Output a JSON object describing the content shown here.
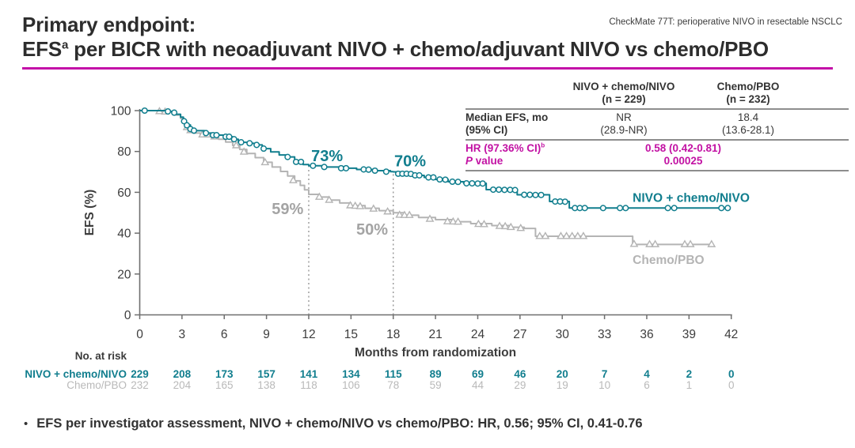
{
  "slide": {
    "kicker": "CheckMate 77T: perioperative NIVO in resectable NSCLC",
    "title_line1": "Primary endpoint:",
    "title_line2_pre": "EFS",
    "title_line2_sup": "a",
    "title_line2_rest": " per BICR with neoadjuvant NIVO + chemo/adjuvant NIVO vs chemo/PBO",
    "bullet_glyph": "•",
    "footnote_bullet": "EFS per investigator assessment, NIVO + chemo/NIVO vs chemo/PBO: HR, 0.56; 95% CI, 0.41-0.76"
  },
  "colors": {
    "accent_magenta": "#c410a8",
    "teal": "#117e8e",
    "gray_curve": "#b4b4b4",
    "gray_annotation": "#a4a4a4",
    "axis": "#6f6f6f",
    "text_dark": "#3d3d3d"
  },
  "stats_table": {
    "col1_header_line1": "NIVO + chemo/NIVO",
    "col1_header_line2": "(n = 229)",
    "col2_header_line1": "Chemo/PBO",
    "col2_header_line2": "(n = 232)",
    "median_label_line1": "Median EFS, mo",
    "median_label_line2": "(95% CI)",
    "median_col1_line1": "NR",
    "median_col1_line2": "(28.9-NR)",
    "median_col2_line1": "18.4",
    "median_col2_line2": "(13.6-28.1)",
    "hr_label_pre": "HR (97.36% CI)",
    "hr_label_sup": "b",
    "hr_value": "0.58 (0.42-0.81)",
    "p_label_italic": "P",
    "p_label_rest": " value",
    "p_value": "0.00025"
  },
  "chart_data": {
    "type": "line",
    "subtype": "kaplan-meier-step",
    "title": "",
    "xlabel": "Months from randomization",
    "ylabel": "EFS (%)",
    "xlim": [
      0,
      42
    ],
    "ylim": [
      0,
      100
    ],
    "xticks": [
      0,
      3,
      6,
      9,
      12,
      15,
      18,
      21,
      24,
      27,
      30,
      33,
      36,
      39,
      42
    ],
    "yticks": [
      0,
      20,
      40,
      60,
      80,
      100
    ],
    "grid": false,
    "legend_position": "inline-labels",
    "series": [
      {
        "name": "NIVO + chemo/NIVO",
        "color": "#117e8e",
        "marker": "circle",
        "label_month": 35.0,
        "label_pct": 55.3,
        "points": [
          [
            0,
            100
          ],
          [
            1.9,
            99.6
          ],
          [
            2.3,
            99
          ],
          [
            2.6,
            98.2
          ],
          [
            2.9,
            96.8
          ],
          [
            3.1,
            95
          ],
          [
            3.3,
            93
          ],
          [
            3.6,
            91
          ],
          [
            3.9,
            90.2
          ],
          [
            4.6,
            89
          ],
          [
            5.1,
            88
          ],
          [
            6.0,
            87.2
          ],
          [
            6.6,
            86
          ],
          [
            7.0,
            84.5
          ],
          [
            7.7,
            84
          ],
          [
            8.2,
            83.2
          ],
          [
            8.7,
            81.4
          ],
          [
            9.3,
            79.8
          ],
          [
            9.9,
            78.3
          ],
          [
            10.5,
            77.3
          ],
          [
            11.0,
            74.9
          ],
          [
            11.6,
            73.6
          ],
          [
            12.0,
            73
          ],
          [
            13.0,
            72.4
          ],
          [
            14.2,
            71.8
          ],
          [
            15.4,
            71.2
          ],
          [
            16.6,
            70.6
          ],
          [
            17.8,
            70.1
          ],
          [
            18.0,
            70
          ],
          [
            18.7,
            69.1
          ],
          [
            19.4,
            68.3
          ],
          [
            20.2,
            67.3
          ],
          [
            21.0,
            66.3
          ],
          [
            21.9,
            65.2
          ],
          [
            23.0,
            64.4
          ],
          [
            24.6,
            61.3
          ],
          [
            26.8,
            58.8
          ],
          [
            29.1,
            55.5
          ],
          [
            30.5,
            52.3
          ],
          [
            41.9,
            52.3
          ]
        ],
        "censor_marks": [
          [
            0.35,
            100
          ],
          [
            2.0,
            99.6
          ],
          [
            2.45,
            99
          ],
          [
            3.15,
            94.8
          ],
          [
            3.35,
            92.8
          ],
          [
            3.6,
            91
          ],
          [
            3.85,
            90.2
          ],
          [
            4.7,
            89
          ],
          [
            5.2,
            88
          ],
          [
            5.45,
            88
          ],
          [
            6.1,
            87.2
          ],
          [
            6.35,
            87.2
          ],
          [
            6.7,
            86
          ],
          [
            7.2,
            84.5
          ],
          [
            7.8,
            84
          ],
          [
            8.3,
            83.2
          ],
          [
            8.8,
            81.4
          ],
          [
            10.5,
            77.3
          ],
          [
            11.1,
            74.9
          ],
          [
            11.45,
            74.9
          ],
          [
            12.3,
            73
          ],
          [
            13.1,
            72.4
          ],
          [
            14.3,
            71.8
          ],
          [
            14.65,
            71.8
          ],
          [
            15.9,
            71.2
          ],
          [
            16.25,
            71.1
          ],
          [
            16.7,
            70.6
          ],
          [
            17.5,
            70.1
          ],
          [
            18.35,
            69.1
          ],
          [
            18.65,
            69.1
          ],
          [
            18.95,
            69.1
          ],
          [
            19.25,
            69
          ],
          [
            19.55,
            68.3
          ],
          [
            19.85,
            68.3
          ],
          [
            20.5,
            67.3
          ],
          [
            20.85,
            67.3
          ],
          [
            21.3,
            66.3
          ],
          [
            21.7,
            66.2
          ],
          [
            22.2,
            65.2
          ],
          [
            22.6,
            65.1
          ],
          [
            23.2,
            64.4
          ],
          [
            23.6,
            64.4
          ],
          [
            24.0,
            64.3
          ],
          [
            24.35,
            64.3
          ],
          [
            25.1,
            61.3
          ],
          [
            25.5,
            61.3
          ],
          [
            25.9,
            61.2
          ],
          [
            26.3,
            61.2
          ],
          [
            26.65,
            61.1
          ],
          [
            27.3,
            58.8
          ],
          [
            27.7,
            58.8
          ],
          [
            28.1,
            58.7
          ],
          [
            28.5,
            58.7
          ],
          [
            29.5,
            55.5
          ],
          [
            29.85,
            55.5
          ],
          [
            30.2,
            55.4
          ],
          [
            30.9,
            52.3
          ],
          [
            31.25,
            52.3
          ],
          [
            31.6,
            52.3
          ],
          [
            32.9,
            52.3
          ],
          [
            34.1,
            52.3
          ],
          [
            34.5,
            52.3
          ],
          [
            37.5,
            52.3
          ],
          [
            37.95,
            52.3
          ],
          [
            41.3,
            52.3
          ],
          [
            41.75,
            52.3
          ]
        ]
      },
      {
        "name": "Chemo/PBO",
        "color": "#b4b4b4",
        "marker": "triangle",
        "label_month": 35.0,
        "label_pct": 25.0,
        "points": [
          [
            0,
            100
          ],
          [
            1.9,
            99.4
          ],
          [
            2.3,
            98.7
          ],
          [
            2.6,
            97.8
          ],
          [
            2.9,
            96.2
          ],
          [
            3.1,
            94.2
          ],
          [
            3.3,
            92
          ],
          [
            3.5,
            90.3
          ],
          [
            3.8,
            89
          ],
          [
            4.3,
            88.2
          ],
          [
            5.0,
            87.2
          ],
          [
            5.6,
            86
          ],
          [
            6.1,
            84.6
          ],
          [
            6.6,
            83
          ],
          [
            7.1,
            81
          ],
          [
            7.6,
            79
          ],
          [
            8.2,
            77
          ],
          [
            8.8,
            74.7
          ],
          [
            9.4,
            72.4
          ],
          [
            10.0,
            70.2
          ],
          [
            10.5,
            68
          ],
          [
            11.0,
            65.6
          ],
          [
            11.4,
            63.4
          ],
          [
            11.7,
            61.2
          ],
          [
            12.0,
            59
          ],
          [
            12.7,
            57.7
          ],
          [
            13.4,
            56.2
          ],
          [
            14.2,
            54.8
          ],
          [
            15.0,
            53.5
          ],
          [
            16.0,
            52.2
          ],
          [
            17.0,
            51
          ],
          [
            18.0,
            50
          ],
          [
            18.8,
            48.8
          ],
          [
            19.8,
            47.7
          ],
          [
            21.0,
            46.6
          ],
          [
            22.2,
            45.6
          ],
          [
            23.5,
            44.7
          ],
          [
            25.0,
            43.7
          ],
          [
            26.3,
            42.9
          ],
          [
            27.3,
            42.3
          ],
          [
            28.1,
            38.5
          ],
          [
            35.0,
            34.5
          ],
          [
            40.7,
            34.5
          ]
        ],
        "censor_marks": [
          [
            1.4,
            99.6
          ],
          [
            1.8,
            99.4
          ],
          [
            3.35,
            91.8
          ],
          [
            3.6,
            90.3
          ],
          [
            4.45,
            88.2
          ],
          [
            4.8,
            88.2
          ],
          [
            5.3,
            87.2
          ],
          [
            6.85,
            82.9
          ],
          [
            7.4,
            79.8
          ],
          [
            8.9,
            74.6
          ],
          [
            10.9,
            65.8
          ],
          [
            12.75,
            57.7
          ],
          [
            13.45,
            56.2
          ],
          [
            14.95,
            53.5
          ],
          [
            15.3,
            53.3
          ],
          [
            15.65,
            53.1
          ],
          [
            16.6,
            51.9
          ],
          [
            17.6,
            50.5
          ],
          [
            18.45,
            48.9
          ],
          [
            18.8,
            48.8
          ],
          [
            19.15,
            48.8
          ],
          [
            20.6,
            46.9
          ],
          [
            21.85,
            45.7
          ],
          [
            22.25,
            45.6
          ],
          [
            22.6,
            45.5
          ],
          [
            24.05,
            44.4
          ],
          [
            24.45,
            44.3
          ],
          [
            25.55,
            43.4
          ],
          [
            25.95,
            43.3
          ],
          [
            26.35,
            42.9
          ],
          [
            27.05,
            42.4
          ],
          [
            28.4,
            38.5
          ],
          [
            28.8,
            38.5
          ],
          [
            29.9,
            38.5
          ],
          [
            30.3,
            38.5
          ],
          [
            30.7,
            38.5
          ],
          [
            31.1,
            38.5
          ],
          [
            31.5,
            38.5
          ],
          [
            35.1,
            34.6
          ],
          [
            36.2,
            34.5
          ],
          [
            36.6,
            34.5
          ],
          [
            38.7,
            34.5
          ],
          [
            39.1,
            34.5
          ],
          [
            40.6,
            34.5
          ]
        ]
      }
    ],
    "reference_lines": [
      {
        "month": 12,
        "top_pct": 73
      },
      {
        "month": 18,
        "top_pct": 70
      }
    ],
    "annotations": [
      {
        "text": "73%",
        "month": 13.3,
        "pct": 75.2,
        "color": "#117e8e"
      },
      {
        "text": "70%",
        "month": 19.2,
        "pct": 72.8,
        "color": "#117e8e"
      },
      {
        "text": "59%",
        "month": 10.5,
        "pct": 49.3,
        "color": "#a4a4a4"
      },
      {
        "text": "50%",
        "month": 16.5,
        "pct": 39.3,
        "color": "#a4a4a4"
      }
    ],
    "no_at_risk": {
      "label": "No. at risk",
      "rows": [
        {
          "name": "NIVO + chemo/NIVO",
          "color": "#117e8e",
          "values": [
            229,
            208,
            173,
            157,
            141,
            134,
            115,
            89,
            69,
            46,
            20,
            7,
            4,
            2,
            0
          ]
        },
        {
          "name": "Chemo/PBO",
          "color": "#b9b9b9",
          "values": [
            232,
            204,
            165,
            138,
            118,
            106,
            78,
            59,
            44,
            29,
            19,
            10,
            6,
            1,
            0
          ]
        }
      ]
    }
  }
}
